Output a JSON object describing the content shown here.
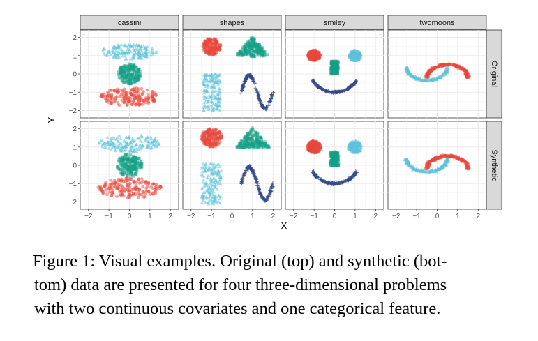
{
  "chart_data": {
    "type": "scatter",
    "xlabel": "X",
    "ylabel": "Y",
    "xlim": [
      -2.4,
      2.4
    ],
    "ylim": [
      -2.4,
      2.4
    ],
    "xticks": [
      -2,
      -1,
      0,
      1,
      2
    ],
    "yticks": [
      -2,
      -1,
      0,
      1,
      2
    ],
    "xtick_labels": [
      "−2",
      "−1",
      "0",
      "1",
      "2"
    ],
    "ytick_labels": [
      "−2",
      "−1",
      "0",
      "1",
      "2"
    ],
    "grid": true,
    "legend": "none",
    "columns": [
      "cassini",
      "shapes",
      "smiley",
      "twomoons"
    ],
    "rows": [
      "Original",
      "Synthetic"
    ],
    "colors": {
      "red": "#e8483b",
      "teal": "#14a085",
      "cyan": "#5cc1dc",
      "navy": "#34498a",
      "strip_bg": "#d9d9d9",
      "grid": "#ebebeb"
    },
    "panels": {
      "cassini": [
        {
          "shape": "ellipse",
          "cx": 0,
          "cy": 1.2,
          "rx": 1.35,
          "ry": 0.42,
          "color": "cyan",
          "marker": "triangle"
        },
        {
          "shape": "disc",
          "cx": 0,
          "cy": 0,
          "r": 0.55,
          "color": "teal",
          "marker": "square"
        },
        {
          "shape": "ellipse",
          "cx": 0,
          "cy": -1.25,
          "rx": 1.4,
          "ry": 0.5,
          "color": "red",
          "marker": "circle"
        }
      ],
      "shapes": [
        {
          "shape": "disc",
          "cx": -1,
          "cy": 1.5,
          "r": 0.45,
          "color": "red",
          "marker": "circle"
        },
        {
          "shape": "triangle",
          "cx": 1,
          "cy": 1.5,
          "w": 1.7,
          "h": 1.1,
          "color": "teal",
          "marker": "square"
        },
        {
          "shape": "rect",
          "cx": -1,
          "cy": -1,
          "w": 0.85,
          "h": 2.0,
          "color": "cyan",
          "marker": "triangle"
        },
        {
          "shape": "sine",
          "x0": 0.45,
          "x1": 2.0,
          "amp": 0.9,
          "cy": -1,
          "color": "navy",
          "marker": "plus"
        }
      ],
      "smiley": [
        {
          "shape": "disc",
          "cx": -1,
          "cy": 1,
          "r": 0.3,
          "color": "red",
          "marker": "circle"
        },
        {
          "shape": "disc",
          "cx": 1,
          "cy": 1,
          "r": 0.3,
          "color": "cyan",
          "marker": "triangle"
        },
        {
          "shape": "rect",
          "cx": 0,
          "cy": 0.35,
          "w": 0.35,
          "h": 0.7,
          "color": "teal",
          "marker": "square"
        },
        {
          "shape": "smile",
          "r": 1.2,
          "cy": 0.2,
          "color": "navy",
          "marker": "plus"
        }
      ],
      "twomoons": [
        {
          "shape": "moon_upper",
          "cx": 0.5,
          "cy": 0.2,
          "r": 1.0,
          "color": "red",
          "marker": "circle"
        },
        {
          "shape": "moon_lower",
          "cx": -0.5,
          "cy": 0.2,
          "r": 1.0,
          "color": "cyan",
          "marker": "triangle"
        }
      ]
    }
  },
  "caption": {
    "lines": [
      "Figure 1: Visual examples. Original (top) and synthetic (bot-",
      "tom) data are presented for four three-dimensional problems",
      "with two continuous covariates and one categorical feature."
    ]
  }
}
